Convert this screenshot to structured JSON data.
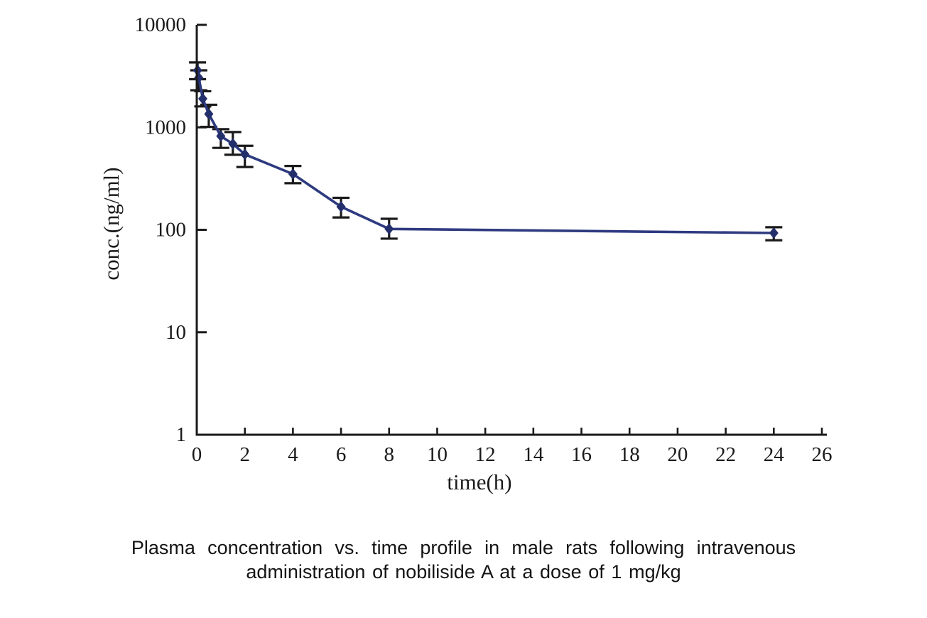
{
  "figure": {
    "background": "#ffffff"
  },
  "caption": {
    "line1": "Plasma concentration vs. time profile in male rats following intravenous",
    "line2": "administration of nobiliside A at a dose of 1 mg/kg"
  },
  "chart_data": {
    "type": "line",
    "title": "",
    "xlabel": "time(h)",
    "ylabel": "conc.(ng/ml)",
    "x_scale": "linear",
    "y_scale": "log",
    "xlim": [
      0,
      26
    ],
    "ylim": [
      1,
      10000
    ],
    "x_ticks": [
      0,
      2,
      4,
      6,
      8,
      10,
      12,
      14,
      16,
      18,
      20,
      22,
      24,
      26
    ],
    "y_ticks": [
      1,
      10,
      100,
      1000,
      10000
    ],
    "grid": false,
    "legend": false,
    "series": [
      {
        "name": "nobiliside A 1 mg/kg IV, male rats",
        "marker": "diamond",
        "points": [
          {
            "t": 0.033,
            "conc": 3600,
            "err_low": 2950,
            "err_high": 4300
          },
          {
            "t": 0.083,
            "conc": 3050,
            "err_low": 2300,
            "err_high": 3600
          },
          {
            "t": 0.25,
            "conc": 1900,
            "err_low": 1600,
            "err_high": 2250
          },
          {
            "t": 0.5,
            "conc": 1350,
            "err_low": 1010,
            "err_high": 1660
          },
          {
            "t": 1,
            "conc": 820,
            "err_low": 630,
            "err_high": 960
          },
          {
            "t": 1.5,
            "conc": 690,
            "err_low": 540,
            "err_high": 900
          },
          {
            "t": 2,
            "conc": 545,
            "err_low": 410,
            "err_high": 660
          },
          {
            "t": 4,
            "conc": 350,
            "err_low": 285,
            "err_high": 420
          },
          {
            "t": 6,
            "conc": 168,
            "err_low": 132,
            "err_high": 205
          },
          {
            "t": 8,
            "conc": 102,
            "err_low": 82,
            "err_high": 128
          },
          {
            "t": 24,
            "conc": 93,
            "err_low": 79,
            "err_high": 106
          }
        ]
      }
    ],
    "colors": {
      "line": "#2e3a80",
      "marker": "#232f6b",
      "error_bar": "#1a1a1a",
      "axis": "#1a1a1a",
      "tick_label": "#1a1a1a"
    }
  }
}
